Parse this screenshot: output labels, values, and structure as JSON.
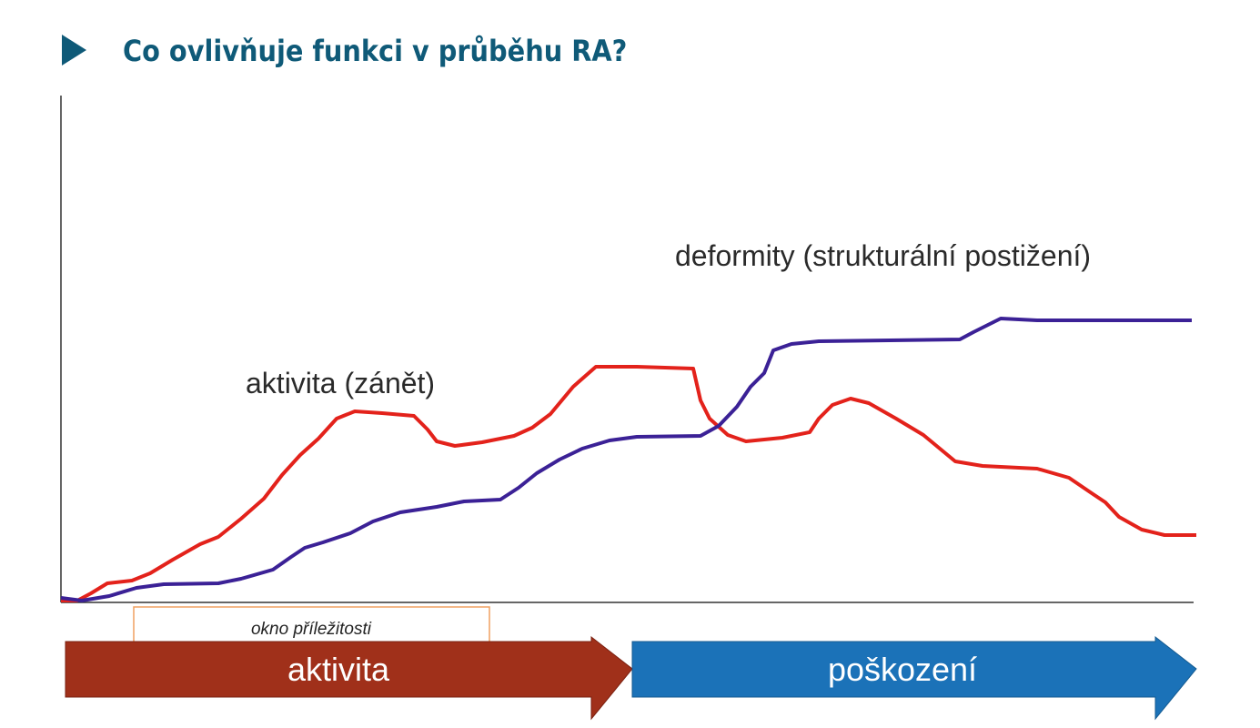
{
  "header": {
    "title": "Co ovlivňuje funkci v průběhu RA?"
  },
  "labels": {
    "deformity": "deformity (strukturální postižení)",
    "activity": "aktivita (zánět)",
    "window": "okno příležitosti"
  },
  "arrows": {
    "left": "aktivita",
    "right": "poškození"
  }
}
